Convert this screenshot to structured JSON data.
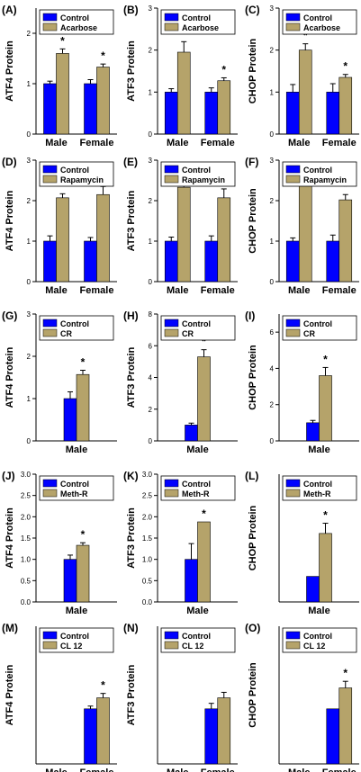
{
  "colors": {
    "control": "#0000ff",
    "treatment": "#b5a36a",
    "axis": "#000000",
    "text": "#000000"
  },
  "chart_data": [
    {
      "panel": "(A)",
      "type": "bar",
      "ylabel": "ATF4 Protein",
      "ylim": [
        0,
        2.5
      ],
      "yticks": [
        0,
        1,
        2
      ],
      "categories": [
        "Male",
        "Female"
      ],
      "series": [
        {
          "name": "Control",
          "values": [
            1.0,
            1.0
          ],
          "errors": [
            0.05,
            0.08
          ]
        },
        {
          "name": "Acarbose",
          "values": [
            1.6,
            1.33
          ],
          "errors": [
            0.09,
            0.06
          ]
        }
      ],
      "significance": [
        "*",
        "*"
      ]
    },
    {
      "panel": "(B)",
      "type": "bar",
      "ylabel": "ATF3 Protein",
      "ylim": [
        0,
        3
      ],
      "yticks": [
        0,
        1,
        2,
        3
      ],
      "categories": [
        "Male",
        "Female"
      ],
      "series": [
        {
          "name": "Control",
          "values": [
            1.0,
            1.0
          ],
          "errors": [
            0.08,
            0.1
          ]
        },
        {
          "name": "Acarbose",
          "values": [
            1.95,
            1.27
          ],
          "errors": [
            0.25,
            0.07
          ]
        }
      ],
      "significance": [
        "*",
        "*"
      ]
    },
    {
      "panel": "(C)",
      "type": "bar",
      "ylabel": "CHOP Protein",
      "ylim": [
        0,
        3
      ],
      "yticks": [
        0,
        1,
        2,
        3
      ],
      "categories": [
        "Male",
        "Female"
      ],
      "series": [
        {
          "name": "Control",
          "values": [
            1.0,
            1.0
          ],
          "errors": [
            0.18,
            0.2
          ]
        },
        {
          "name": "Acarbose",
          "values": [
            2.0,
            1.35
          ],
          "errors": [
            0.15,
            0.07
          ]
        }
      ],
      "significance": [
        "*",
        "*"
      ]
    },
    {
      "panel": "(D)",
      "type": "bar",
      "ylabel": "ATF4 Protein",
      "ylim": [
        0,
        3
      ],
      "yticks": [
        0,
        1,
        2,
        3
      ],
      "categories": [
        "Male",
        "Female"
      ],
      "series": [
        {
          "name": "Control",
          "values": [
            1.0,
            1.0
          ],
          "errors": [
            0.13,
            0.09
          ]
        },
        {
          "name": "Rapamycin",
          "values": [
            2.07,
            2.15
          ],
          "errors": [
            0.1,
            0.2
          ]
        }
      ],
      "significance": [
        "*",
        "*"
      ]
    },
    {
      "panel": "(E)",
      "type": "bar",
      "ylabel": "ATF3 Protein",
      "ylim": [
        0,
        3
      ],
      "yticks": [
        0,
        1,
        2,
        3
      ],
      "categories": [
        "Male",
        "Female"
      ],
      "series": [
        {
          "name": "Control",
          "values": [
            1.0,
            1.0
          ],
          "errors": [
            0.1,
            0.13
          ]
        },
        {
          "name": "Rapamycin",
          "values": [
            2.33,
            2.07
          ],
          "errors": [
            0.12,
            0.22
          ]
        }
      ],
      "significance": [
        "*",
        "*"
      ]
    },
    {
      "panel": "(F)",
      "type": "bar",
      "ylabel": "CHOP Protein",
      "ylim": [
        0,
        3
      ],
      "yticks": [
        0,
        1,
        2,
        3
      ],
      "categories": [
        "Male",
        "Female"
      ],
      "series": [
        {
          "name": "Control",
          "values": [
            1.0,
            1.0
          ],
          "errors": [
            0.08,
            0.15
          ]
        },
        {
          "name": "Rapamycin",
          "values": [
            2.4,
            2.02
          ],
          "errors": [
            0.13,
            0.13
          ]
        }
      ],
      "significance": [
        "*",
        "*"
      ]
    },
    {
      "panel": "(G)",
      "type": "bar",
      "ylabel": "ATF4 Protein",
      "ylim": [
        0,
        3
      ],
      "yticks": [
        0,
        1,
        2,
        3
      ],
      "categories": [
        "Male"
      ],
      "series": [
        {
          "name": "Control",
          "values": [
            1.0
          ],
          "errors": [
            0.16
          ]
        },
        {
          "name": "CR",
          "values": [
            1.57
          ],
          "errors": [
            0.1
          ]
        }
      ],
      "significance": [
        "*"
      ]
    },
    {
      "panel": "(H)",
      "type": "bar",
      "ylabel": "ATF3 Protein",
      "ylim": [
        0,
        8
      ],
      "yticks": [
        0,
        2,
        4,
        6,
        8
      ],
      "categories": [
        "Male"
      ],
      "series": [
        {
          "name": "Control",
          "values": [
            1.0
          ],
          "errors": [
            0.12
          ]
        },
        {
          "name": "CR",
          "values": [
            5.3
          ],
          "errors": [
            0.45
          ]
        }
      ],
      "significance": [
        "*"
      ]
    },
    {
      "panel": "(I)",
      "type": "bar",
      "ylabel": "CHOP Protein",
      "ylim": [
        0,
        7
      ],
      "yticks": [
        0,
        2,
        4,
        6
      ],
      "categories": [
        "Male"
      ],
      "series": [
        {
          "name": "Control",
          "values": [
            1.0
          ],
          "errors": [
            0.13
          ]
        },
        {
          "name": "CR",
          "values": [
            3.6
          ],
          "errors": [
            0.45
          ]
        }
      ],
      "significance": [
        "*"
      ]
    },
    {
      "panel": "(J)",
      "type": "bar",
      "ylabel": "ATF4 Protein",
      "ylim": [
        0,
        3.0
      ],
      "yticks": [
        0,
        0.5,
        1.0,
        1.5,
        2.0,
        2.5,
        3.0
      ],
      "ytick_decimals": 1,
      "categories": [
        "Male"
      ],
      "series": [
        {
          "name": "Control",
          "values": [
            1.0
          ],
          "errors": [
            0.1
          ]
        },
        {
          "name": "Meth-R",
          "values": [
            1.33
          ],
          "errors": [
            0.06
          ]
        }
      ],
      "significance": [
        "*"
      ]
    },
    {
      "panel": "(K)",
      "type": "bar",
      "ylabel": "ATF3 Protein",
      "ylim": [
        0,
        3.0
      ],
      "yticks": [
        0,
        0.5,
        1.0,
        1.5,
        2.0,
        2.5,
        3.0
      ],
      "ytick_decimals": 1,
      "categories": [
        "Male"
      ],
      "series": [
        {
          "name": "Control",
          "values": [
            1.0
          ],
          "errors": [
            0.37
          ]
        },
        {
          "name": "Meth-R",
          "values": [
            1.88
          ],
          "errors": [
            0
          ]
        }
      ],
      "significance": [
        "*"
      ]
    },
    {
      "panel": "(L)",
      "type": "bar",
      "ylabel": "CHOP Protein",
      "ylim": [
        0,
        5
      ],
      "yticks": [],
      "categories": [
        "Male"
      ],
      "series": [
        {
          "name": "Control",
          "values": [
            1.0
          ],
          "errors": [
            0
          ]
        },
        {
          "name": "Meth-R",
          "values": [
            2.68
          ],
          "errors": [
            0.4
          ]
        }
      ],
      "significance": [
        "*"
      ]
    },
    {
      "panel": "(M)",
      "type": "bar",
      "ylabel": "ATF4 Protein",
      "ylim": [
        0,
        2.5
      ],
      "yticks": [],
      "categories": [
        "Male",
        "Female"
      ],
      "series": [
        {
          "name": "Control",
          "values": [
            null,
            1.0
          ],
          "errors": [
            0,
            0.05
          ]
        },
        {
          "name": "CL 12",
          "values": [
            null,
            1.2
          ],
          "errors": [
            0,
            0.08
          ]
        }
      ],
      "significance": [
        "",
        "*"
      ]
    },
    {
      "panel": "(N)",
      "type": "bar",
      "ylabel": "ATF3 Protein",
      "ylim": [
        0,
        2.5
      ],
      "yticks": [],
      "categories": [
        "Male",
        "Female"
      ],
      "series": [
        {
          "name": "Control",
          "values": [
            null,
            1.0
          ],
          "errors": [
            0,
            0.1
          ]
        },
        {
          "name": "CL 12",
          "values": [
            null,
            1.2
          ],
          "errors": [
            0,
            0.1
          ]
        }
      ],
      "significance": [
        "",
        ""
      ]
    },
    {
      "panel": "(O)",
      "type": "bar",
      "ylabel": "CHOP Protein",
      "ylim": [
        0,
        2.5
      ],
      "yticks": [],
      "categories": [
        "Male",
        "Female"
      ],
      "series": [
        {
          "name": "Control",
          "values": [
            null,
            1.0
          ],
          "errors": [
            0,
            0
          ]
        },
        {
          "name": "CL 12",
          "values": [
            null,
            1.38
          ],
          "errors": [
            0,
            0.12
          ]
        }
      ],
      "significance": [
        "",
        "*"
      ]
    }
  ]
}
